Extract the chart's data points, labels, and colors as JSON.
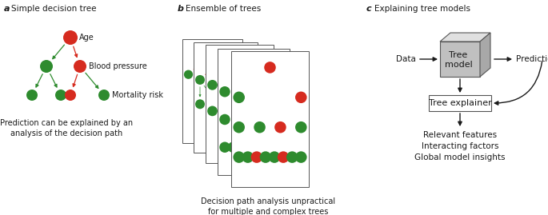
{
  "panel_a_label": "a",
  "panel_b_label": "b",
  "panel_c_label": "c",
  "panel_a_title": "Simple decision tree",
  "panel_b_title": "Ensemble of trees",
  "panel_c_title": "Explaining tree models",
  "caption_a": "Prediction can be explained by an\nanalysis of the decision path",
  "caption_b": "Decision path analysis unpractical\nfor multiple and complex trees",
  "caption_c_lines": [
    "Relevant features",
    "Interacting factors",
    "Global model insights"
  ],
  "red_color": "#d62b1f",
  "green_color": "#2e8b2e",
  "text_color": "#1a1a1a",
  "bg_color": "#ffffff",
  "box_edge_color": "#555555",
  "cube_front_color": "#c0c0c0",
  "cube_top_color": "#e0e0e0",
  "cube_right_color": "#a8a8a8"
}
